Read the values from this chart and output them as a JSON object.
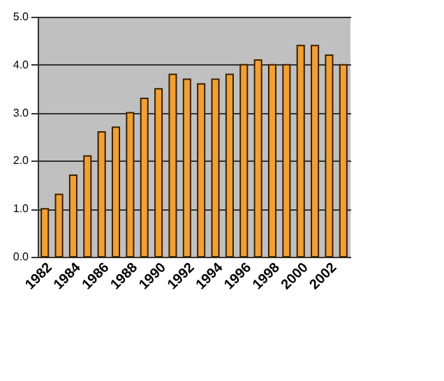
{
  "chart_data": {
    "type": "bar",
    "categories": [
      "1982",
      null,
      "1984",
      null,
      "1986",
      null,
      "1988",
      null,
      "1990",
      null,
      "1992",
      null,
      "1994",
      null,
      "1996",
      null,
      "1998",
      null,
      "2000",
      null,
      "2002",
      null
    ],
    "values": [
      1.0,
      1.3,
      1.7,
      2.1,
      2.6,
      2.7,
      3.0,
      3.3,
      3.5,
      3.8,
      3.7,
      3.6,
      3.7,
      3.8,
      4.0,
      4.1,
      4.0,
      4.0,
      4.4,
      4.4,
      4.2,
      4.0
    ],
    "color": "#f2a033",
    "ylim": [
      0,
      5
    ],
    "yticks": [
      {
        "value": 0,
        "label": "0.0"
      },
      {
        "value": 1,
        "label": "1.0"
      },
      {
        "value": 2,
        "label": "2.0"
      },
      {
        "value": 3,
        "label": "3.0"
      },
      {
        "value": 4,
        "label": "4.0"
      },
      {
        "value": 5,
        "label": "5.0"
      }
    ],
    "grid": "y"
  }
}
